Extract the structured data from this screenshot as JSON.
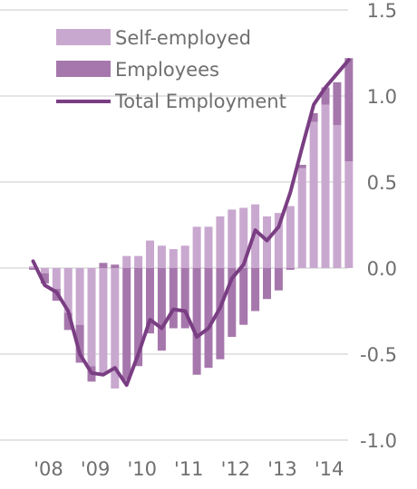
{
  "chart_data": {
    "type": "bar",
    "stacked": true,
    "x_tick_labels": [
      "'08",
      "'09",
      "'10",
      "'11",
      "'12",
      "'13",
      "'14"
    ],
    "y_tick_labels": [
      "1.5",
      "1.0",
      "0.5",
      "0.0",
      "-0.5",
      "-1.0"
    ],
    "y_ticks": [
      1.5,
      1.0,
      0.5,
      0.0,
      -0.5,
      -1.0
    ],
    "ylim": [
      -1.0,
      1.5
    ],
    "grid": true,
    "legend_position": "top-left",
    "periods": [
      "2008Q1",
      "2008Q2",
      "2008Q3",
      "2008Q4",
      "2009Q1",
      "2009Q2",
      "2009Q3",
      "2009Q4",
      "2010Q1",
      "2010Q2",
      "2010Q3",
      "2010Q4",
      "2011Q1",
      "2011Q2",
      "2011Q3",
      "2011Q4",
      "2012Q1",
      "2012Q2",
      "2012Q3",
      "2012Q4",
      "2013Q1",
      "2013Q2",
      "2013Q3",
      "2013Q4",
      "2014Q1",
      "2014Q2",
      "2014Q3",
      "2014Q4"
    ],
    "series": [
      {
        "name": "Self-employed",
        "color": "#c9a8cf",
        "values": [
          0.01,
          -0.03,
          -0.12,
          -0.26,
          -0.33,
          -0.57,
          -0.62,
          -0.7,
          0.07,
          0.07,
          0.16,
          0.13,
          0.11,
          0.13,
          0.24,
          0.24,
          0.3,
          0.34,
          0.35,
          0.37,
          0.3,
          0.32,
          0.36,
          0.58,
          0.85,
          0.95,
          0.83,
          0.62
        ]
      },
      {
        "name": "Employees",
        "color": "#a677ac",
        "values": [
          -0.01,
          -0.06,
          -0.07,
          -0.1,
          -0.22,
          -0.09,
          0.03,
          0.02,
          -0.65,
          -0.57,
          -0.38,
          -0.48,
          -0.35,
          -0.35,
          -0.62,
          -0.58,
          -0.53,
          -0.4,
          -0.33,
          -0.25,
          -0.18,
          -0.13,
          -0.01,
          0.02,
          0.05,
          0.1,
          0.25,
          0.6
        ]
      },
      {
        "name": "Total Employment",
        "type": "line",
        "color": "#7a3e83",
        "values": [
          0.04,
          -0.1,
          -0.14,
          -0.25,
          -0.5,
          -0.61,
          -0.62,
          -0.58,
          -0.68,
          -0.5,
          -0.3,
          -0.35,
          -0.24,
          -0.25,
          -0.4,
          -0.35,
          -0.23,
          -0.06,
          0.02,
          0.22,
          0.16,
          0.24,
          0.44,
          0.7,
          0.95,
          1.05,
          1.13,
          1.21
        ]
      }
    ]
  }
}
